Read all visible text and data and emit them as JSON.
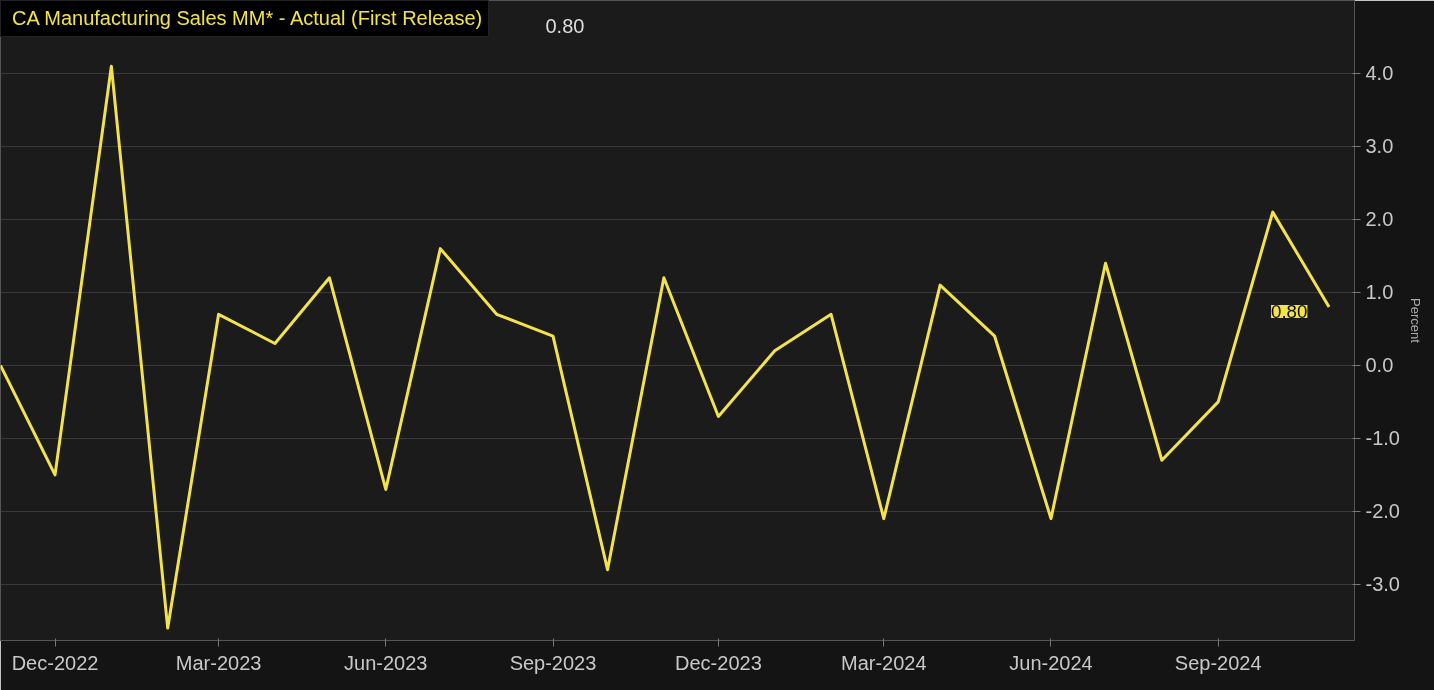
{
  "chart_data": {
    "type": "line",
    "legend": "top left",
    "grid": "y",
    "ylabel": "Percent",
    "x": [
      "2022-11",
      "2022-12",
      "2023-01",
      "2023-02",
      "2023-03",
      "2023-04",
      "2023-05",
      "2023-06",
      "2023-07",
      "2023-08",
      "2023-09",
      "2023-10",
      "2023-11",
      "2023-12",
      "2024-01",
      "2024-02",
      "2024-03",
      "2024-04",
      "2024-05",
      "2024-06",
      "2024-07",
      "2024-08",
      "2024-09",
      "2024-10",
      "2024-11"
    ],
    "series": [
      {
        "name": "CA Manufacturing Sales MM* - Actual (First Release)",
        "color": "#f2e34c",
        "values": [
          0.0,
          -1.5,
          4.1,
          -3.6,
          0.7,
          0.3,
          1.2,
          -1.7,
          1.6,
          0.7,
          0.4,
          -2.8,
          1.2,
          -0.7,
          0.2,
          0.7,
          -2.1,
          1.1,
          0.4,
          -2.1,
          1.4,
          -1.3,
          -0.5,
          2.1,
          0.8
        ]
      }
    ],
    "xlim": [
      "2022-11",
      "2024-11-15"
    ],
    "xticks": [
      {
        "value": "2022-12",
        "label": "Dec-2022"
      },
      {
        "value": "2023-03",
        "label": "Mar-2023"
      },
      {
        "value": "2023-06",
        "label": "Jun-2023"
      },
      {
        "value": "2023-09",
        "label": "Sep-2023"
      },
      {
        "value": "2023-12",
        "label": "Dec-2023"
      },
      {
        "value": "2024-03",
        "label": "Mar-2024"
      },
      {
        "value": "2024-06",
        "label": "Jun-2024"
      },
      {
        "value": "2024-09",
        "label": "Sep-2024"
      }
    ],
    "ylim": [
      -3.77,
      5.0
    ],
    "yticks": [
      {
        "value": -3,
        "label": "-3.0"
      },
      {
        "value": -2,
        "label": "-2.0"
      },
      {
        "value": -1,
        "label": "-1.0"
      },
      {
        "value": 0,
        "label": "0.0"
      },
      {
        "value": 1,
        "label": "1.0"
      },
      {
        "value": 2,
        "label": "2.0"
      },
      {
        "value": 3,
        "label": "3.0"
      },
      {
        "value": 4,
        "label": "4.0"
      }
    ],
    "annotations": [
      {
        "text": "0.80",
        "x": "2024-11",
        "y": 0.8
      },
      "0.80"
    ]
  }
}
